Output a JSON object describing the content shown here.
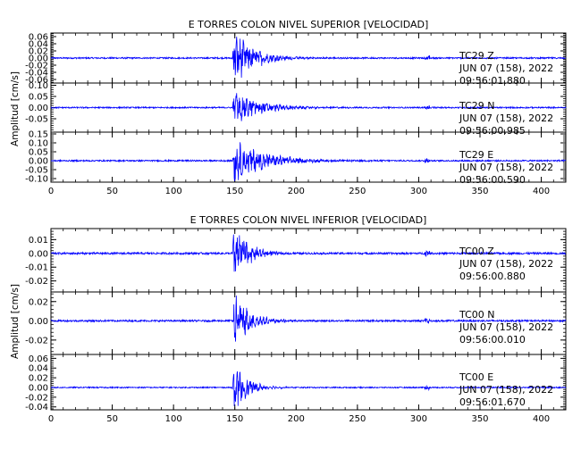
{
  "chart_data": [
    {
      "type": "line",
      "title": "E TORRES COLON NIVEL SUPERIOR [VELOCIDAD]",
      "ylabel": "Amplitud [cm/s]",
      "xlabel": "",
      "xlim": [
        0,
        420
      ],
      "x_ticks": [
        "0",
        "50",
        "100",
        "150",
        "200",
        "250",
        "300",
        "350",
        "400"
      ],
      "line_color": "#0000ff",
      "grid": false,
      "panels": [
        {
          "station": "TC29",
          "component": "Z",
          "date": "JUN 07 (158), 2022",
          "time": "09:56:01.880",
          "ylim": [
            -0.07,
            0.07
          ],
          "y_ticks": [
            "0.06",
            "0.04",
            "0.02",
            "0.00",
            "-0.02",
            "-0.04",
            "-0.06"
          ],
          "peak_amplitude": 0.065,
          "noise_level": 0.002,
          "p_arrival": 148,
          "coda_decay": 16,
          "secondary_event": 307
        },
        {
          "station": "TC29",
          "component": "N",
          "date": "JUN 07 (158), 2022",
          "time": "09:56:00.985",
          "ylim": [
            -0.11,
            0.11
          ],
          "y_ticks": [
            "0.10",
            "0.05",
            "0.00",
            "-0.05"
          ],
          "peak_amplitude": 0.06,
          "noise_level": 0.003,
          "p_arrival": 148,
          "coda_decay": 22,
          "secondary_event": 307
        },
        {
          "station": "TC29",
          "component": "E",
          "date": "JUN 07 (158), 2022",
          "time": "09:56:00.590",
          "ylim": [
            -0.12,
            0.16
          ],
          "y_ticks": [
            "0.15",
            "0.10",
            "0.05",
            "0.00",
            "-0.05",
            "-0.10"
          ],
          "peak_amplitude": 0.1,
          "noise_level": 0.004,
          "p_arrival": 148,
          "coda_decay": 25,
          "secondary_event": 307
        }
      ]
    },
    {
      "type": "line",
      "title": "E TORRES COLON NIVEL INFERIOR [VELOCIDAD]",
      "ylabel": "Amplitud [cm/s]",
      "xlabel": "",
      "xlim": [
        0,
        420
      ],
      "x_ticks": [
        "0",
        "50",
        "100",
        "150",
        "200",
        "250",
        "300",
        "350",
        "400"
      ],
      "line_color": "#0000ff",
      "grid": false,
      "panels": [
        {
          "station": "TC00",
          "component": "Z",
          "date": "JUN 07 (158), 2022",
          "time": "09:56:00.880",
          "ylim": [
            -0.028,
            0.018
          ],
          "y_ticks": [
            "0.01",
            "0.00",
            "-0.01",
            "-0.02"
          ],
          "peak_amplitude": 0.018,
          "noise_level": 0.0007,
          "p_arrival": 148,
          "coda_decay": 12,
          "secondary_event": 307
        },
        {
          "station": "TC00",
          "component": "N",
          "date": "JUN 07 (158), 2022",
          "time": "09:56:00.010",
          "ylim": [
            -0.035,
            0.03
          ],
          "y_ticks": [
            "0.02",
            "0.00",
            "-0.02"
          ],
          "peak_amplitude": 0.028,
          "noise_level": 0.0009,
          "p_arrival": 148,
          "coda_decay": 12,
          "secondary_event": 307
        },
        {
          "station": "TC00",
          "component": "E",
          "date": "JUN 07 (158), 2022",
          "time": "09:56:01.670",
          "ylim": [
            -0.046,
            0.068
          ],
          "y_ticks": [
            "0.06",
            "0.04",
            "0.02",
            "0.00",
            "-0.02",
            "-0.04"
          ],
          "peak_amplitude": 0.045,
          "noise_level": 0.0012,
          "p_arrival": 148,
          "coda_decay": 11,
          "secondary_event": 307
        }
      ]
    }
  ]
}
